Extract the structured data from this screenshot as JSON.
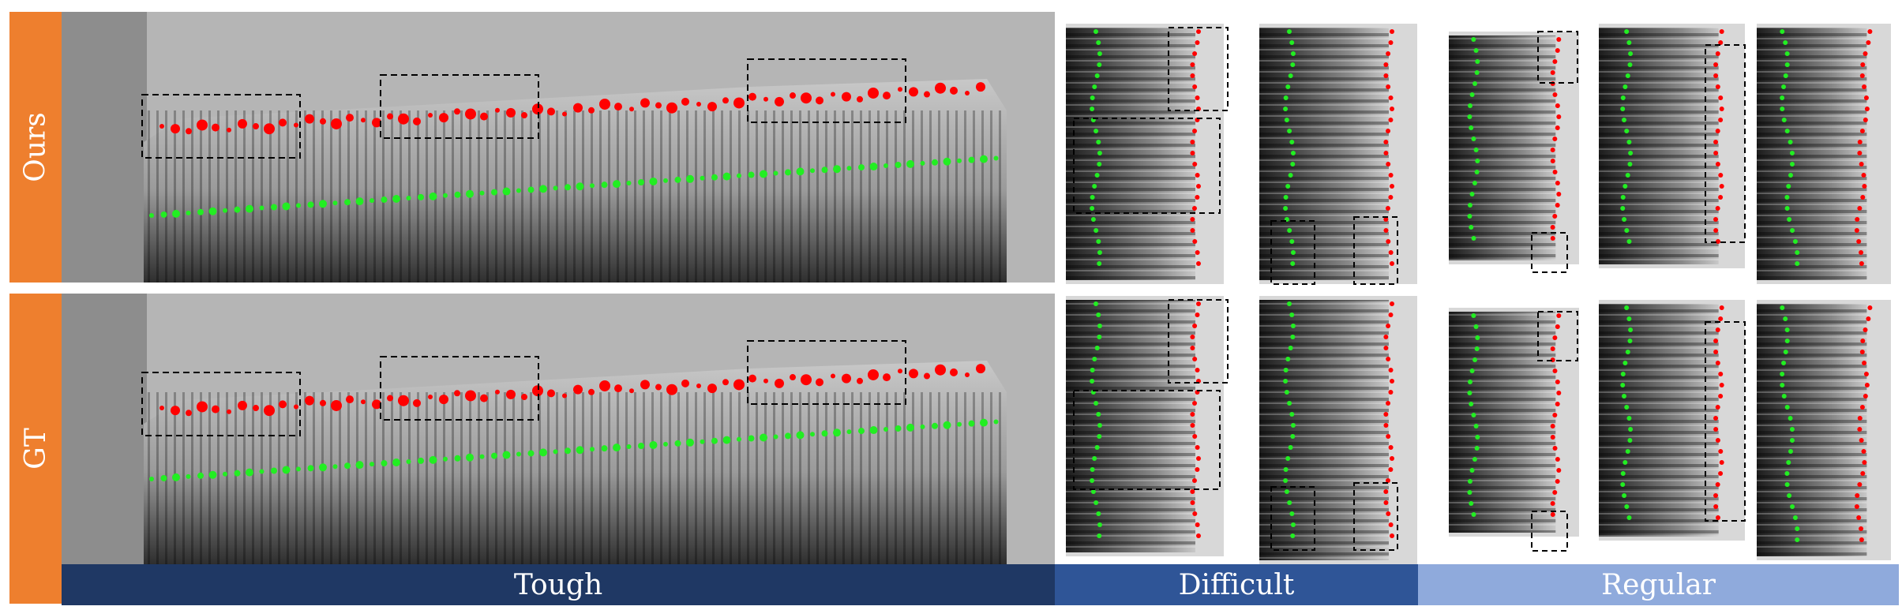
{
  "row_labels": {
    "top": "Ours",
    "bottom": "GT"
  },
  "categories": {
    "tough": "Tough",
    "difficult": "Difficult",
    "regular": "Regular"
  },
  "colors": {
    "row_label_bg": "#ee7f2e",
    "tough_bar": "#1f3864",
    "difficult_bar": "#2f5597",
    "regular_bar": "#8faadc",
    "top_edge_point": "#ff0000",
    "bottom_edge_point": "#22ee22",
    "highlight_box": "#000000"
  }
}
